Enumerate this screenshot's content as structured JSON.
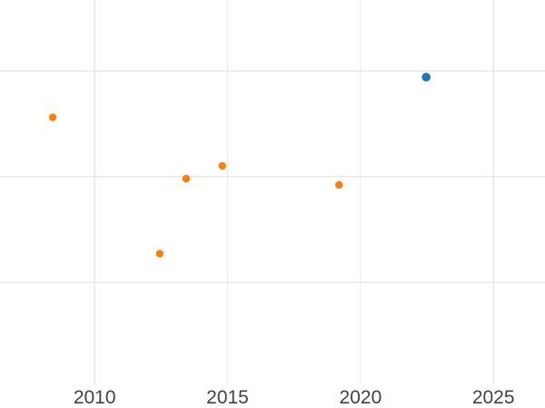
{
  "chart_data": {
    "type": "scatter",
    "title": "",
    "xlabel": "",
    "ylabel": "",
    "x_axis": {
      "tick_labels": [
        "2010",
        "2015",
        "2020",
        "2025"
      ],
      "tick_values": [
        2010,
        2015,
        2020,
        2025
      ],
      "range": [
        2006.44,
        2026.94
      ]
    },
    "y_axis": {
      "tick_labels": [],
      "gridline_values": [
        1,
        2,
        3
      ],
      "range": [
        -0.19,
        3.67
      ],
      "note": "y-axis has no visible tick labels; point values expressed in gridline units (one unit = spacing between horizontal gridlines)"
    },
    "grid": true,
    "legend_position": "none",
    "series": [
      {
        "name": "orange-series",
        "color": "#ff7f0e",
        "marker_radius_px": 4.2,
        "points": [
          {
            "x": 2008.42,
            "y": 2.56
          },
          {
            "x": 2012.45,
            "y": 1.27
          },
          {
            "x": 2013.44,
            "y": 1.98
          },
          {
            "x": 2014.8,
            "y": 2.1
          },
          {
            "x": 2019.19,
            "y": 1.92
          }
        ]
      },
      {
        "name": "blue-series",
        "color": "#1f77b4",
        "marker_radius_px": 4.8,
        "points": [
          {
            "x": 2022.47,
            "y": 2.94
          }
        ]
      }
    ],
    "style": {
      "background_color": "#ffffff",
      "gridline_color": "#e9e9e9",
      "tick_label_color": "#424242",
      "tick_font_size_px": 21
    }
  }
}
